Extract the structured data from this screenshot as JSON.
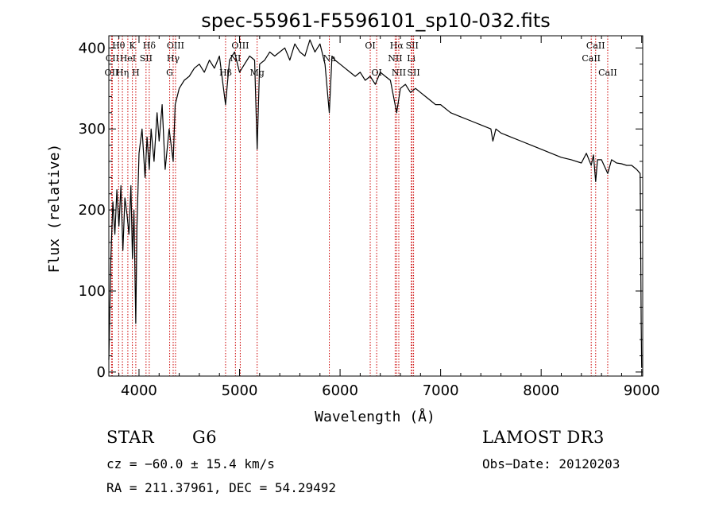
{
  "chart_data": {
    "type": "line",
    "title": "spec-55961-F5596101_sp10-032.fits",
    "xlabel": "Wavelength (Å)",
    "ylabel": "Flux (relative)",
    "xlim": [
      3700,
      9010
    ],
    "ylim": [
      -5,
      415
    ],
    "xticks": [
      4000,
      5000,
      6000,
      7000,
      8000,
      9000
    ],
    "yticks": [
      0,
      100,
      200,
      300,
      400
    ],
    "spectrum": {
      "x": [
        3700,
        3720,
        3740,
        3760,
        3780,
        3800,
        3820,
        3840,
        3860,
        3880,
        3900,
        3920,
        3935,
        3950,
        3968,
        3980,
        4000,
        4030,
        4060,
        4080,
        4102,
        4120,
        4150,
        4180,
        4200,
        4230,
        4260,
        4300,
        4340,
        4360,
        4400,
        4450,
        4500,
        4550,
        4600,
        4650,
        4700,
        4750,
        4800,
        4861,
        4900,
        4950,
        5000,
        5050,
        5100,
        5150,
        5175,
        5200,
        5250,
        5300,
        5350,
        5400,
        5450,
        5500,
        5550,
        5600,
        5650,
        5700,
        5750,
        5800,
        5850,
        5893,
        5920,
        5950,
        6000,
        6050,
        6100,
        6150,
        6200,
        6250,
        6300,
        6350,
        6400,
        6450,
        6500,
        6563,
        6600,
        6650,
        6700,
        6750,
        6800,
        6850,
        6900,
        6950,
        7000,
        7100,
        7200,
        7300,
        7400,
        7500,
        7520,
        7550,
        7600,
        7700,
        7800,
        7900,
        8000,
        8100,
        8200,
        8300,
        8400,
        8450,
        8498,
        8520,
        8542,
        8560,
        8600,
        8662,
        8700,
        8750,
        8800,
        8850,
        8900,
        8950,
        8985,
        8990,
        8995,
        9000
      ],
      "y": [
        15,
        140,
        210,
        170,
        225,
        180,
        230,
        150,
        215,
        195,
        170,
        230,
        140,
        200,
        60,
        180,
        270,
        300,
        240,
        290,
        250,
        300,
        260,
        320,
        285,
        330,
        250,
        300,
        260,
        330,
        350,
        360,
        365,
        375,
        380,
        370,
        385,
        375,
        390,
        330,
        385,
        395,
        370,
        380,
        390,
        385,
        275,
        380,
        385,
        395,
        390,
        395,
        400,
        385,
        405,
        395,
        390,
        410,
        395,
        405,
        380,
        320,
        390,
        385,
        380,
        375,
        370,
        365,
        370,
        360,
        365,
        355,
        370,
        365,
        360,
        320,
        350,
        355,
        345,
        350,
        345,
        340,
        335,
        330,
        330,
        320,
        315,
        310,
        305,
        300,
        285,
        300,
        295,
        290,
        285,
        280,
        275,
        270,
        265,
        262,
        258,
        270,
        255,
        268,
        235,
        262,
        262,
        245,
        262,
        258,
        257,
        255,
        255,
        250,
        245,
        150,
        60,
        5
      ]
    },
    "line_markers": [
      {
        "label": "Hθ",
        "x": 3797,
        "row": 0
      },
      {
        "label": "CII",
        "x": 3735,
        "row": 1
      },
      {
        "label": "OII",
        "x": 3727,
        "row": 2
      },
      {
        "label": "K",
        "x": 3934,
        "row": 0
      },
      {
        "label": "HeI",
        "x": 3889,
        "row": 1
      },
      {
        "label": "Hη",
        "x": 3835,
        "row": 2
      },
      {
        "label": "Hδ",
        "x": 4102,
        "row": 0
      },
      {
        "label": "SII",
        "x": 4070,
        "row": 1
      },
      {
        "label": "H",
        "x": 3968,
        "row": 2
      },
      {
        "label": "OIII",
        "x": 4363,
        "row": 0
      },
      {
        "label": "Hγ",
        "x": 4340,
        "row": 1
      },
      {
        "label": "G",
        "x": 4305,
        "row": 2
      },
      {
        "label": "OIII",
        "x": 5007,
        "row": 0
      },
      {
        "label": "NI",
        "x": 4959,
        "row": 1
      },
      {
        "label": "Hβ",
        "x": 4861,
        "row": 2
      },
      {
        "label": "Mg",
        "x": 5175,
        "row": 2
      },
      {
        "label": "Na",
        "x": 5893,
        "row": 1
      },
      {
        "label": "OI",
        "x": 6300,
        "row": 0
      },
      {
        "label": "OI",
        "x": 6364,
        "row": 2
      },
      {
        "label": "Hα",
        "x": 6563,
        "row": 0
      },
      {
        "label": "NII",
        "x": 6548,
        "row": 1
      },
      {
        "label": "NII",
        "x": 6584,
        "row": 2
      },
      {
        "label": "SII",
        "x": 6716,
        "row": 0
      },
      {
        "label": "Li",
        "x": 6708,
        "row": 1
      },
      {
        "label": "SII",
        "x": 6731,
        "row": 2
      },
      {
        "label": "CaII",
        "x": 8542,
        "row": 0
      },
      {
        "label": "CaII",
        "x": 8498,
        "row": 1
      },
      {
        "label": "CaII",
        "x": 8662,
        "row": 2
      }
    ]
  },
  "info": {
    "class_label": "STAR",
    "subclass": "G6",
    "survey": "LAMOST DR3",
    "cz_text": "cz = −60.0 ± 15.4 km/s",
    "obs_date_text": "Obs−Date: 20120203",
    "coords_text": "RA = 211.37961, DEC =  54.29492"
  },
  "colors": {
    "marker_line": "#cc0000",
    "spectrum": "#000000"
  }
}
